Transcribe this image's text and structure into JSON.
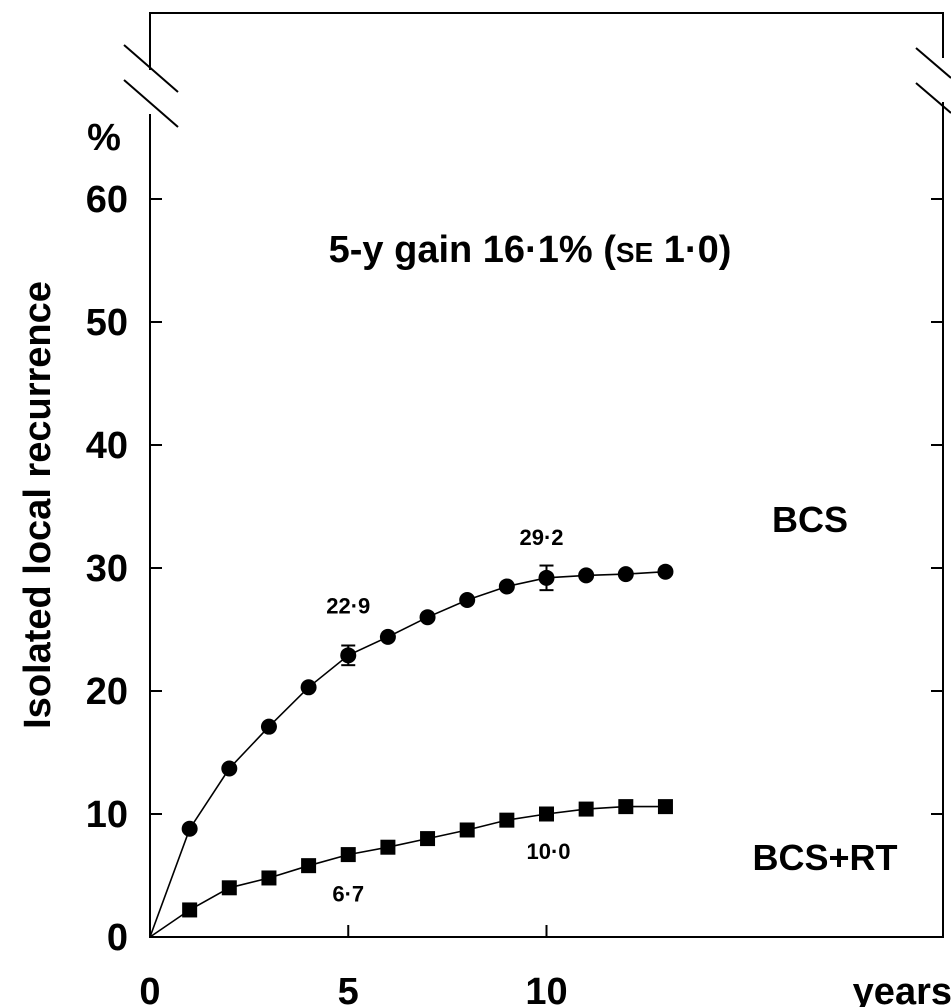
{
  "chart_data": {
    "type": "line",
    "title": "5-y gain 16·1% (SE 1·0)",
    "title_parts": {
      "main": "5-y gain 16·1% (",
      "se": "SE",
      "tail": " 1·0)"
    },
    "ylabel": "Isolated local recurrence",
    "yunit": "%",
    "xlabel": "years",
    "xlim": [
      0,
      20
    ],
    "ylim": [
      0,
      70
    ],
    "xticks": [
      "0",
      "5",
      "10"
    ],
    "yticks": [
      "0",
      "10",
      "20",
      "30",
      "40",
      "50",
      "60"
    ],
    "grid": false,
    "axis_break": true,
    "series": [
      {
        "name": "BCS",
        "marker": "circle",
        "x": [
          0,
          1,
          2,
          3,
          4,
          5,
          6,
          7,
          8,
          9,
          10,
          11,
          12,
          13
        ],
        "y": [
          0,
          8.8,
          13.7,
          17.1,
          20.3,
          22.9,
          24.4,
          26.0,
          27.4,
          28.5,
          29.2,
          29.4,
          29.5,
          29.7
        ],
        "error_bars": {
          "5": 0.8,
          "10": 1.0
        }
      },
      {
        "name": "BCS+RT",
        "marker": "square",
        "x": [
          0,
          1,
          2,
          3,
          4,
          5,
          6,
          7,
          8,
          9,
          10,
          11,
          12,
          13
        ],
        "y": [
          0,
          2.2,
          4.0,
          4.8,
          5.8,
          6.7,
          7.3,
          8.0,
          8.7,
          9.5,
          10.0,
          10.4,
          10.6,
          10.6
        ],
        "error_bars": {}
      }
    ],
    "annotations": [
      {
        "text": "22·9",
        "series": "BCS",
        "x": 5
      },
      {
        "text": "29·2",
        "series": "BCS",
        "x": 10
      },
      {
        "text": "6·7",
        "series": "BCS+RT",
        "x": 5
      },
      {
        "text": "10·0",
        "series": "BCS+RT",
        "x": 10
      }
    ]
  }
}
